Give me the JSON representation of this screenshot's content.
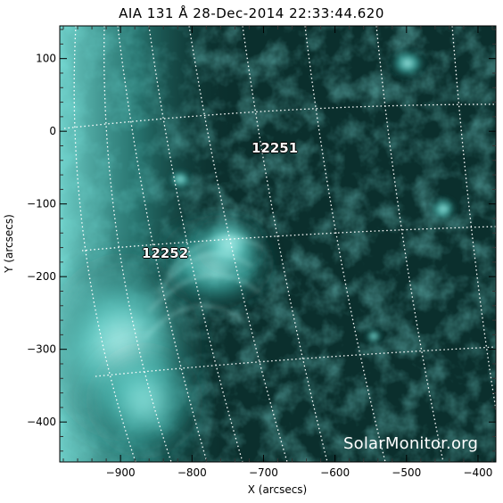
{
  "title": "AIA 131 Å 28-Dec-2014 22:33:44.620",
  "x_axis": {
    "label": "X (arcsecs)",
    "ticks": [
      "−900",
      "−800",
      "−700",
      "−600",
      "−500",
      "−400"
    ],
    "tick_values": [
      -900,
      -800,
      -700,
      -600,
      -500,
      -400
    ],
    "range": [
      -985,
      -375
    ]
  },
  "y_axis": {
    "label": "Y (arcsecs)",
    "ticks": [
      "100",
      "0",
      "−100",
      "−200",
      "−300",
      "−400"
    ],
    "tick_values": [
      100,
      0,
      -100,
      -200,
      -300,
      -400
    ],
    "range": [
      -455,
      145
    ]
  },
  "active_regions": [
    {
      "id": "12251",
      "x_arcsec": -715,
      "y_arcsec": -30
    },
    {
      "id": "12252",
      "x_arcsec": -822,
      "y_arcsec": -170
    }
  ],
  "watermark": "SolarMonitor.org",
  "colors": {
    "background": "#0b2f2d",
    "bright": "#9cf7f0",
    "mid": "#2f9c96",
    "grid": "#ffffff"
  }
}
